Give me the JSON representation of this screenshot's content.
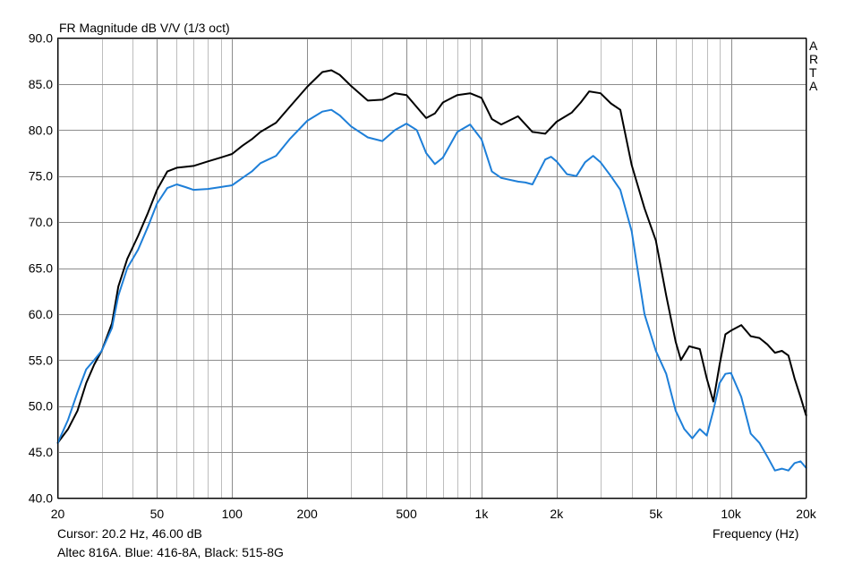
{
  "chart_data": {
    "type": "line",
    "title": "FR Magnitude dB V/V (1/3 oct)",
    "watermark": "ARTA",
    "xlabel": "Frequency (Hz)",
    "ylabel": "",
    "xscale": "log",
    "xlim": [
      20,
      20000
    ],
    "ylim": [
      40,
      90
    ],
    "grid": true,
    "x_tick_values": [
      20,
      50,
      100,
      200,
      500,
      1000,
      2000,
      5000,
      10000,
      20000
    ],
    "x_tick_labels": [
      "20",
      "50",
      "100",
      "200",
      "500",
      "1k",
      "2k",
      "5k",
      "10k",
      "20k"
    ],
    "y_tick_values": [
      40,
      45,
      50,
      55,
      60,
      65,
      70,
      75,
      80,
      85,
      90
    ],
    "y_tick_labels": [
      "40.0",
      "45.0",
      "50.0",
      "55.0",
      "60.0",
      "65.0",
      "70.0",
      "75.0",
      "80.0",
      "85.0",
      "90.0"
    ],
    "cursor_text": "Cursor: 20.2 Hz, 46.00 dB",
    "note": "Altec 816A. Blue: 416-8A, Black: 515-8G",
    "series": [
      {
        "color": "#000000",
        "x": [
          20,
          22,
          24,
          26,
          28,
          30,
          33,
          35,
          38,
          42,
          46,
          50,
          55,
          60,
          65,
          70,
          80,
          90,
          100,
          110,
          120,
          130,
          150,
          170,
          200,
          230,
          250,
          270,
          300,
          350,
          400,
          450,
          500,
          550,
          600,
          650,
          700,
          800,
          900,
          1000,
          1100,
          1200,
          1400,
          1600,
          1700,
          1800,
          2000,
          2300,
          2500,
          2700,
          3000,
          3300,
          3600,
          4000,
          4500,
          5000,
          5500,
          6000,
          6300,
          6800,
          7500,
          8000,
          8500,
          9000,
          9500,
          10000,
          11000,
          12000,
          13000,
          14000,
          15000,
          16000,
          17000,
          18000,
          19000,
          20000
        ],
        "values": [
          46.0,
          47.5,
          49.5,
          52.5,
          54.5,
          56.0,
          59.0,
          63.0,
          66.0,
          68.5,
          71.0,
          73.5,
          75.5,
          75.9,
          76.0,
          76.1,
          76.6,
          77.0,
          77.4,
          78.3,
          79.0,
          79.8,
          80.8,
          82.5,
          84.7,
          86.3,
          86.5,
          86.0,
          84.8,
          83.2,
          83.3,
          84.0,
          83.8,
          82.5,
          81.3,
          81.8,
          83.0,
          83.8,
          84.0,
          83.5,
          81.2,
          80.6,
          81.5,
          79.8,
          79.7,
          79.6,
          80.9,
          81.9,
          83.0,
          84.2,
          84.0,
          82.9,
          82.2,
          76.2,
          71.5,
          68.0,
          62.0,
          57.0,
          55.0,
          56.5,
          56.2,
          53.0,
          50.5,
          54.5,
          57.8,
          58.2,
          58.8,
          57.6,
          57.4,
          56.7,
          55.8,
          56.0,
          55.5,
          53.0,
          51.0,
          49.0
        ]
      },
      {
        "color": "#1e7fd8",
        "x": [
          20,
          22,
          24,
          26,
          28,
          30,
          33,
          35,
          38,
          42,
          46,
          50,
          55,
          60,
          65,
          70,
          80,
          90,
          100,
          110,
          120,
          130,
          150,
          170,
          200,
          230,
          250,
          270,
          300,
          350,
          400,
          450,
          500,
          550,
          600,
          650,
          700,
          800,
          900,
          1000,
          1100,
          1200,
          1400,
          1500,
          1600,
          1700,
          1800,
          1900,
          2000,
          2200,
          2400,
          2600,
          2800,
          3000,
          3300,
          3600,
          4000,
          4500,
          5000,
          5500,
          6000,
          6500,
          7000,
          7500,
          8000,
          8500,
          9000,
          9500,
          10000,
          11000,
          12000,
          13000,
          14000,
          15000,
          16000,
          17000,
          18000,
          19000,
          20000
        ],
        "values": [
          46.0,
          48.5,
          51.5,
          54.0,
          55.0,
          56.0,
          58.5,
          62.0,
          65.0,
          67.0,
          69.5,
          72.0,
          73.7,
          74.1,
          73.8,
          73.5,
          73.6,
          73.8,
          74.0,
          74.8,
          75.5,
          76.4,
          77.2,
          79.0,
          81.0,
          82.0,
          82.2,
          81.6,
          80.4,
          79.2,
          78.8,
          80.0,
          80.7,
          80.0,
          77.5,
          76.3,
          77.0,
          79.8,
          80.6,
          79.0,
          75.5,
          74.8,
          74.4,
          74.3,
          74.1,
          75.5,
          76.8,
          77.1,
          76.6,
          75.2,
          75.0,
          76.5,
          77.2,
          76.5,
          75.0,
          73.5,
          69.0,
          60.0,
          56.0,
          53.5,
          49.5,
          47.5,
          46.5,
          47.5,
          46.8,
          49.5,
          52.5,
          53.5,
          53.6,
          51.0,
          47.0,
          46.0,
          44.5,
          43.0,
          43.2,
          43.0,
          43.8,
          44.0,
          43.3
        ]
      }
    ]
  }
}
